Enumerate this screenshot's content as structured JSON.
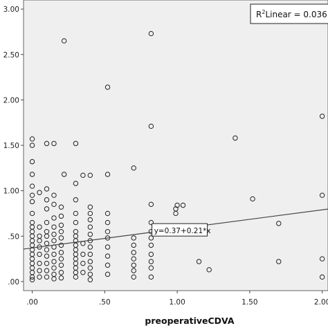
{
  "chart_data": {
    "type": "scatter",
    "title": "",
    "xlabel": "preoperativeCDVA",
    "ylabel": "",
    "xlim": [
      -0.06,
      2.04
    ],
    "ylim": [
      -0.1,
      3.1
    ],
    "x_ticks": [
      0,
      0.5,
      1.0,
      1.5,
      2.0
    ],
    "x_tick_labels": [
      ".00",
      ".50",
      "1.00",
      "1.50",
      "2.00"
    ],
    "y_ticks": [
      0,
      0.5,
      1.0,
      1.5,
      2.0,
      2.5,
      3.0
    ],
    "y_tick_labels": [
      ".00",
      ".50",
      "1.00",
      "1.50",
      "2.00",
      "2.50",
      "3.00"
    ],
    "grid": false,
    "background": "#efefef",
    "fit_line": {
      "intercept": 0.37,
      "slope": 0.21,
      "label": "y=0.37+0.21*x",
      "label_at_x": 0.84
    },
    "r2_legend": {
      "label": "Linear = 0.036",
      "position": "top-right"
    },
    "series": [
      {
        "marker": "open-circle",
        "points": [
          [
            0.0,
            1.57
          ],
          [
            0.0,
            1.5
          ],
          [
            0.0,
            1.32
          ],
          [
            0.0,
            1.18
          ],
          [
            0.0,
            1.05
          ],
          [
            0.0,
            0.95
          ],
          [
            0.0,
            0.88
          ],
          [
            0.0,
            0.75
          ],
          [
            0.0,
            0.65
          ],
          [
            0.0,
            0.6
          ],
          [
            0.0,
            0.55
          ],
          [
            0.0,
            0.5
          ],
          [
            0.0,
            0.45
          ],
          [
            0.0,
            0.4
          ],
          [
            0.0,
            0.35
          ],
          [
            0.0,
            0.3
          ],
          [
            0.0,
            0.25
          ],
          [
            0.0,
            0.2
          ],
          [
            0.0,
            0.15
          ],
          [
            0.0,
            0.1
          ],
          [
            0.0,
            0.05
          ],
          [
            0.0,
            0.02
          ],
          [
            0.05,
            0.98
          ],
          [
            0.05,
            0.6
          ],
          [
            0.05,
            0.5
          ],
          [
            0.05,
            0.45
          ],
          [
            0.05,
            0.38
          ],
          [
            0.05,
            0.3
          ],
          [
            0.05,
            0.2
          ],
          [
            0.05,
            0.12
          ],
          [
            0.05,
            0.05
          ],
          [
            0.1,
            1.52
          ],
          [
            0.1,
            1.02
          ],
          [
            0.1,
            0.9
          ],
          [
            0.1,
            0.8
          ],
          [
            0.1,
            0.65
          ],
          [
            0.1,
            0.55
          ],
          [
            0.1,
            0.5
          ],
          [
            0.1,
            0.42
          ],
          [
            0.1,
            0.35
          ],
          [
            0.1,
            0.28
          ],
          [
            0.1,
            0.2
          ],
          [
            0.1,
            0.12
          ],
          [
            0.1,
            0.05
          ],
          [
            0.15,
            1.52
          ],
          [
            0.15,
            0.95
          ],
          [
            0.15,
            0.85
          ],
          [
            0.15,
            0.7
          ],
          [
            0.15,
            0.6
          ],
          [
            0.15,
            0.52
          ],
          [
            0.15,
            0.45
          ],
          [
            0.15,
            0.38
          ],
          [
            0.15,
            0.3
          ],
          [
            0.15,
            0.22
          ],
          [
            0.15,
            0.15
          ],
          [
            0.15,
            0.08
          ],
          [
            0.15,
            0.03
          ],
          [
            0.22,
            2.65
          ],
          [
            0.22,
            1.18
          ],
          [
            0.2,
            0.82
          ],
          [
            0.2,
            0.72
          ],
          [
            0.2,
            0.62
          ],
          [
            0.2,
            0.55
          ],
          [
            0.2,
            0.48
          ],
          [
            0.2,
            0.4
          ],
          [
            0.2,
            0.32
          ],
          [
            0.2,
            0.25
          ],
          [
            0.2,
            0.18
          ],
          [
            0.2,
            0.1
          ],
          [
            0.2,
            0.04
          ],
          [
            0.3,
            1.52
          ],
          [
            0.3,
            1.08
          ],
          [
            0.3,
            0.9
          ],
          [
            0.3,
            0.75
          ],
          [
            0.3,
            0.65
          ],
          [
            0.3,
            0.55
          ],
          [
            0.3,
            0.5
          ],
          [
            0.3,
            0.45
          ],
          [
            0.3,
            0.4
          ],
          [
            0.3,
            0.35
          ],
          [
            0.3,
            0.3
          ],
          [
            0.3,
            0.25
          ],
          [
            0.3,
            0.2
          ],
          [
            0.3,
            0.15
          ],
          [
            0.3,
            0.1
          ],
          [
            0.3,
            0.05
          ],
          [
            0.35,
            1.17
          ],
          [
            0.35,
            0.42
          ],
          [
            0.35,
            0.3
          ],
          [
            0.35,
            0.2
          ],
          [
            0.35,
            0.1
          ],
          [
            0.4,
            1.17
          ],
          [
            0.4,
            0.82
          ],
          [
            0.4,
            0.75
          ],
          [
            0.4,
            0.68
          ],
          [
            0.4,
            0.6
          ],
          [
            0.4,
            0.52
          ],
          [
            0.4,
            0.45
          ],
          [
            0.4,
            0.38
          ],
          [
            0.4,
            0.3
          ],
          [
            0.4,
            0.22
          ],
          [
            0.4,
            0.15
          ],
          [
            0.4,
            0.08
          ],
          [
            0.4,
            0.02
          ],
          [
            0.52,
            2.14
          ],
          [
            0.52,
            1.18
          ],
          [
            0.52,
            0.75
          ],
          [
            0.52,
            0.65
          ],
          [
            0.52,
            0.55
          ],
          [
            0.52,
            0.48
          ],
          [
            0.52,
            0.38
          ],
          [
            0.52,
            0.28
          ],
          [
            0.52,
            0.18
          ],
          [
            0.52,
            0.08
          ],
          [
            0.7,
            1.25
          ],
          [
            0.7,
            0.48
          ],
          [
            0.7,
            0.4
          ],
          [
            0.7,
            0.32
          ],
          [
            0.7,
            0.25
          ],
          [
            0.7,
            0.18
          ],
          [
            0.7,
            0.12
          ],
          [
            0.7,
            0.05
          ],
          [
            0.82,
            2.73
          ],
          [
            0.82,
            1.71
          ],
          [
            0.82,
            0.85
          ],
          [
            0.82,
            0.65
          ],
          [
            0.82,
            0.55
          ],
          [
            0.82,
            0.48
          ],
          [
            0.82,
            0.4
          ],
          [
            0.82,
            0.3
          ],
          [
            0.82,
            0.22
          ],
          [
            0.82,
            0.15
          ],
          [
            0.82,
            0.05
          ],
          [
            0.99,
            0.8
          ],
          [
            0.99,
            0.75
          ],
          [
            1.0,
            0.84
          ],
          [
            1.04,
            0.84
          ],
          [
            1.15,
            0.22
          ],
          [
            1.22,
            0.13
          ],
          [
            1.4,
            1.58
          ],
          [
            1.52,
            0.91
          ],
          [
            1.7,
            0.64
          ],
          [
            1.7,
            0.22
          ],
          [
            2.0,
            1.82
          ],
          [
            2.0,
            0.95
          ],
          [
            2.0,
            0.25
          ],
          [
            2.0,
            0.05
          ]
        ]
      }
    ]
  }
}
